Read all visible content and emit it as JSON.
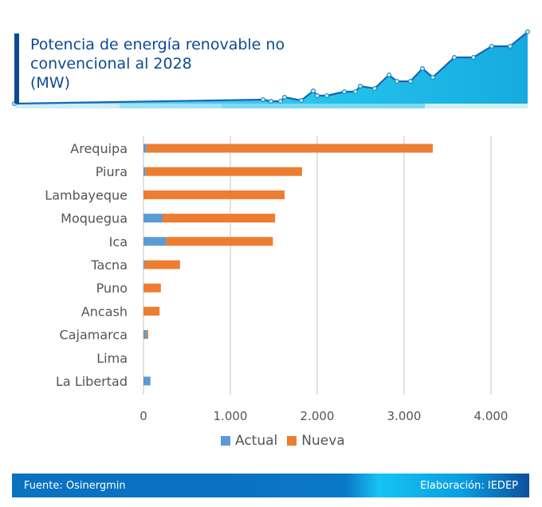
{
  "header": {
    "title_lines": [
      "Potencia de energía renovable no",
      "convencional al 2028",
      "(MW)"
    ],
    "accent_color": "#0d4a93"
  },
  "chart_data": {
    "type": "bar",
    "orientation": "horizontal",
    "stacked": true,
    "title": "Potencia de energía renovable no convencional al 2028 (MW)",
    "categories": [
      "Arequipa",
      "Piura",
      "Lambayeque",
      "Moquegua",
      "Ica",
      "Tacna",
      "Puno",
      "Ancash",
      "Cajamarca",
      "Lima",
      "La Libertad"
    ],
    "series": [
      {
        "name": "Actual",
        "color": "#5b9bd5",
        "values": [
          35,
          25,
          0,
          220,
          260,
          15,
          0,
          0,
          35,
          0,
          80
        ]
      },
      {
        "name": "Nueva",
        "color": "#ed7d31",
        "values": [
          3295,
          1800,
          1625,
          1295,
          1230,
          405,
          200,
          185,
          20,
          0,
          0
        ]
      }
    ],
    "xlim": [
      0,
      4400
    ],
    "xticks": [
      0,
      1000,
      2000,
      3000,
      4000
    ],
    "xtick_labels": [
      "0",
      "1.000",
      "2.000",
      "3.000",
      "4.000"
    ],
    "xlabel": "",
    "ylabel": "",
    "grid": true,
    "legend": "bottom"
  },
  "legend": {
    "items": [
      {
        "label": "Actual",
        "color": "#5b9bd5"
      },
      {
        "label": "Nueva",
        "color": "#ed7d31"
      }
    ]
  },
  "footer": {
    "source": "Fuente: Osinergmin",
    "credit": "Elaboración: IEDEP"
  }
}
